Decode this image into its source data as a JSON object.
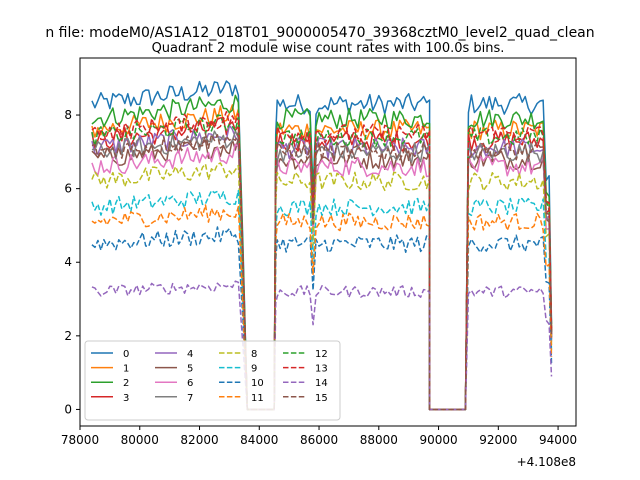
{
  "chart_data": {
    "type": "line",
    "suptitle": "n file: modeM0/AS1A12_018T01_9000005470_39368cztM0_level2_quad_clean",
    "title": "Quadrant 2 module wise count rates with 100.0s bins.",
    "xlabel": "",
    "ylabel": "",
    "x_offset_label": "+4.108e8",
    "xlim": [
      78000,
      94600
    ],
    "ylim": [
      -0.45,
      9.55
    ],
    "xticks": [
      78000,
      80000,
      82000,
      84000,
      86000,
      88000,
      90000,
      92000,
      94000
    ],
    "xtick_labels": [
      "78000",
      "80000",
      "82000",
      "84000",
      "86000",
      "88000",
      "90000",
      "92000",
      "94000"
    ],
    "yticks": [
      0,
      2,
      4,
      6,
      8
    ],
    "ytick_labels": [
      "0",
      "2",
      "4",
      "6",
      "8"
    ],
    "legend_placement": "lower-left",
    "segments": [
      {
        "start": 78400,
        "end": 83300
      },
      {
        "start": 84600,
        "end": 89700
      },
      {
        "start": 91000,
        "end": 93700
      }
    ],
    "gaps": [
      {
        "start": 83600,
        "end": 84500
      },
      {
        "start": 89700,
        "end": 90900
      }
    ],
    "spike_at": 85800,
    "series": [
      {
        "name": "0",
        "level": 8.3,
        "noise": 0.28,
        "color": "#1f77b4",
        "dashed": false
      },
      {
        "name": "1",
        "level": 7.6,
        "noise": 0.28,
        "color": "#ff7f0e",
        "dashed": false
      },
      {
        "name": "2",
        "level": 7.9,
        "noise": 0.28,
        "color": "#2ca02c",
        "dashed": false
      },
      {
        "name": "3",
        "level": 7.3,
        "noise": 0.28,
        "color": "#d62728",
        "dashed": false
      },
      {
        "name": "4",
        "level": 7.1,
        "noise": 0.28,
        "color": "#9467bd",
        "dashed": false
      },
      {
        "name": "5",
        "level": 6.8,
        "noise": 0.28,
        "color": "#8c564b",
        "dashed": false
      },
      {
        "name": "6",
        "level": 6.6,
        "noise": 0.28,
        "color": "#e377c2",
        "dashed": false
      },
      {
        "name": "7",
        "level": 7.0,
        "noise": 0.28,
        "color": "#7f7f7f",
        "dashed": false
      },
      {
        "name": "8",
        "level": 6.2,
        "noise": 0.26,
        "color": "#bcbd22",
        "dashed": true
      },
      {
        "name": "9",
        "level": 5.5,
        "noise": 0.24,
        "color": "#17becf",
        "dashed": true
      },
      {
        "name": "10",
        "level": 4.5,
        "noise": 0.24,
        "color": "#1f77b4",
        "dashed": true
      },
      {
        "name": "11",
        "level": 5.1,
        "noise": 0.24,
        "color": "#ff7f0e",
        "dashed": true
      },
      {
        "name": "12",
        "level": 7.4,
        "noise": 0.26,
        "color": "#2ca02c",
        "dashed": true
      },
      {
        "name": "13",
        "level": 7.5,
        "noise": 0.26,
        "color": "#d62728",
        "dashed": true
      },
      {
        "name": "14",
        "level": 3.2,
        "noise": 0.16,
        "color": "#9467bd",
        "dashed": true
      },
      {
        "name": "15",
        "level": 7.0,
        "noise": 0.26,
        "color": "#8c564b",
        "dashed": true
      }
    ]
  }
}
